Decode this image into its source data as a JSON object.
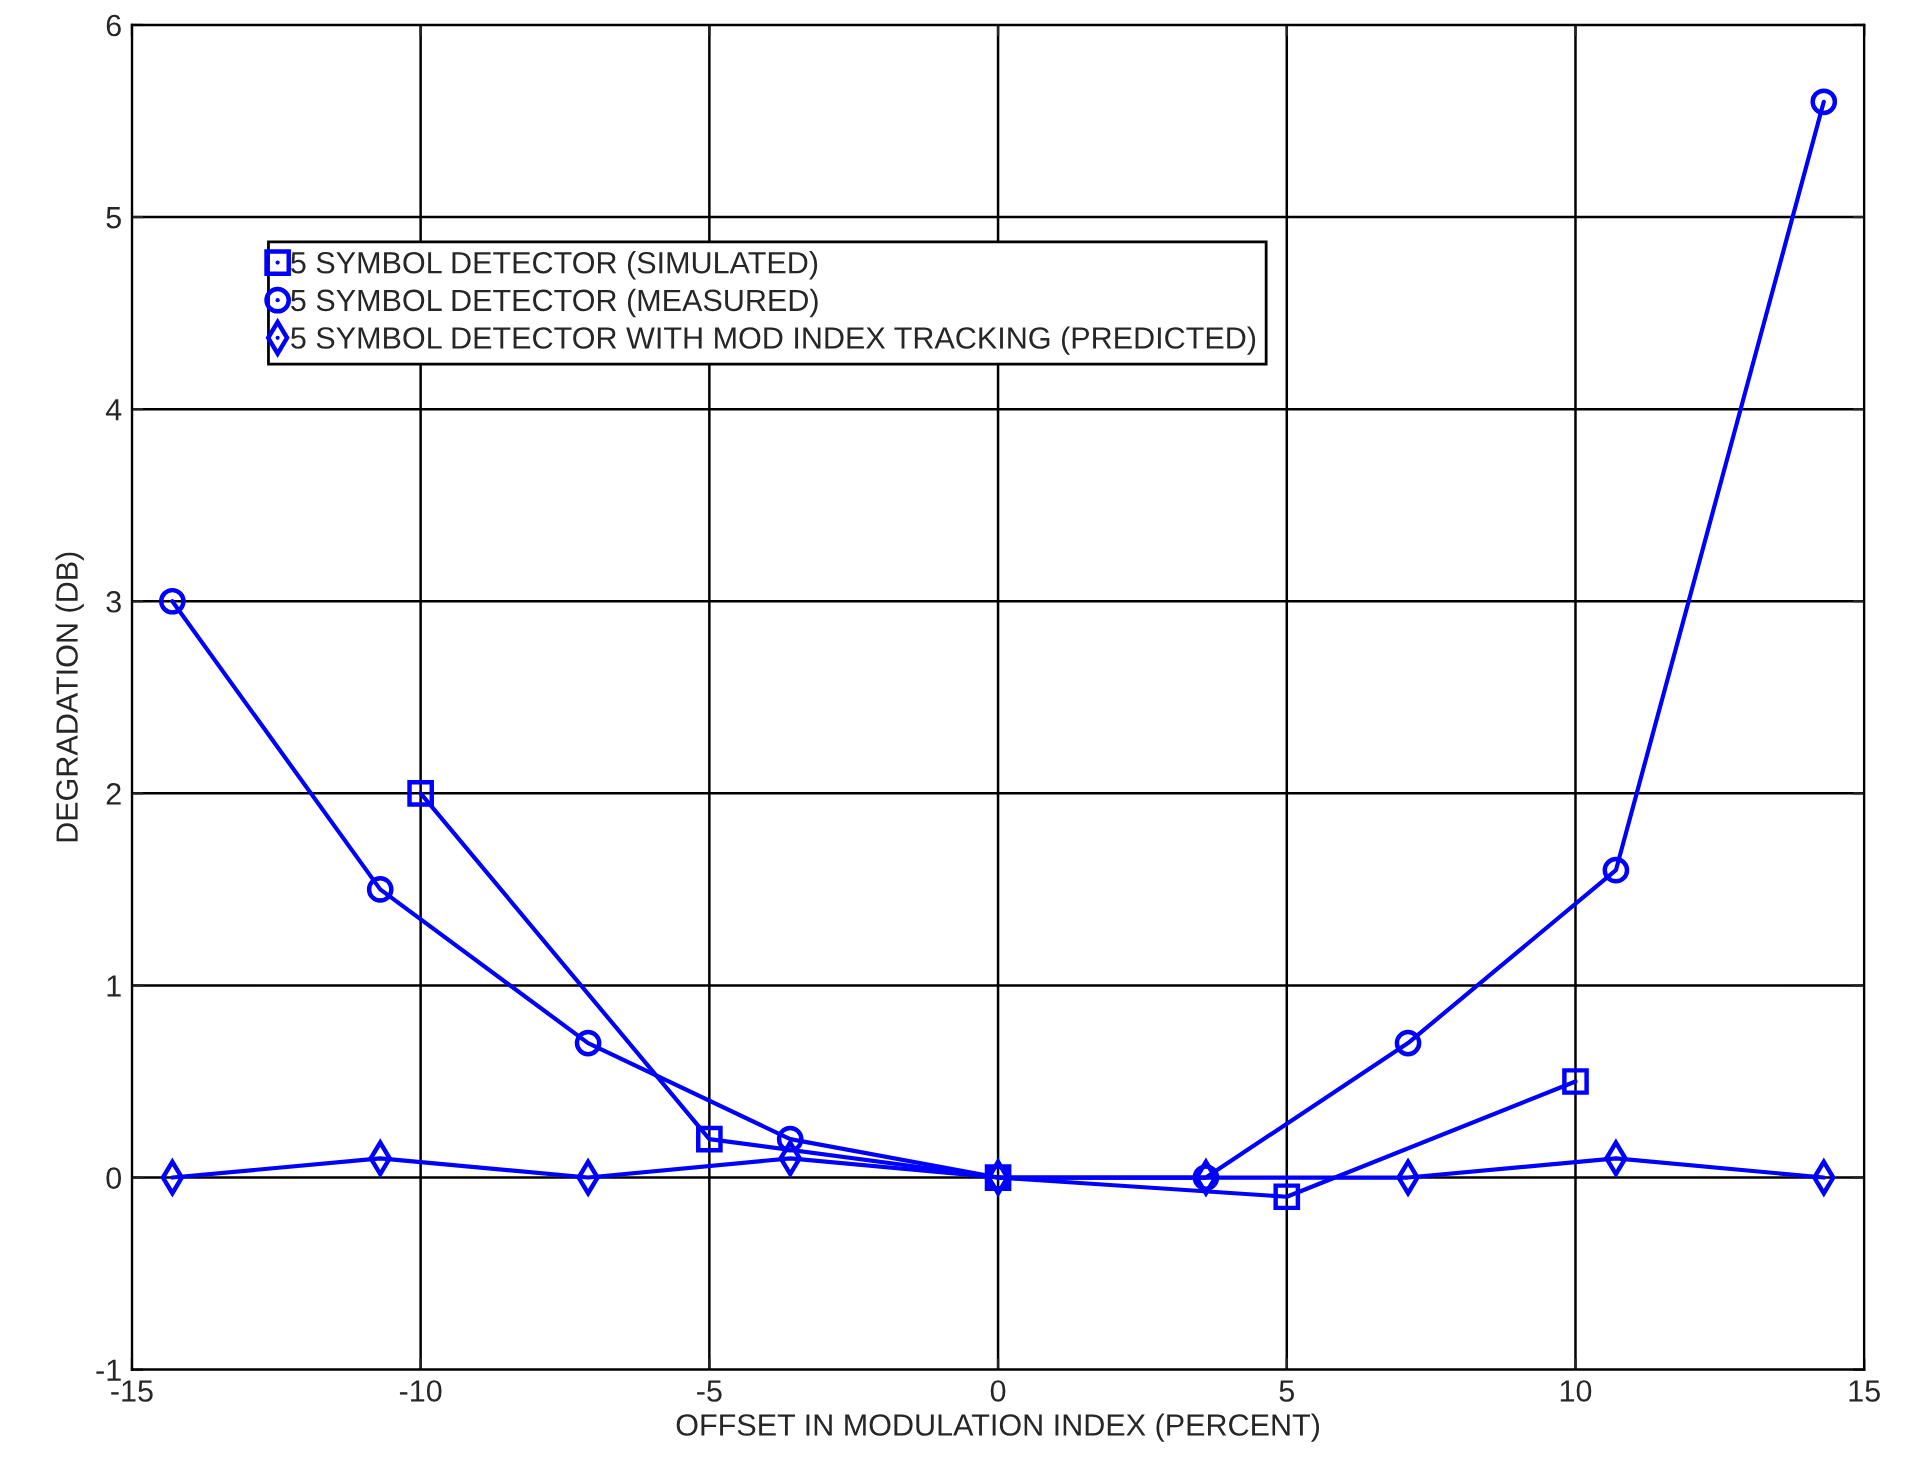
{
  "chart_data": {
    "type": "line",
    "xlabel": "OFFSET IN MODULATION INDEX (PERCENT)",
    "ylabel": "DEGRADATION (DB)",
    "xlim": [
      -15,
      15
    ],
    "xticks": [
      -15,
      -10,
      -5,
      0,
      5,
      10,
      15
    ],
    "ylim": [
      -1,
      6
    ],
    "yticks": [
      -1,
      0,
      1,
      2,
      3,
      4,
      5,
      6
    ],
    "grid": true,
    "legend": "top left",
    "series": [
      {
        "name": "5 SYMBOL DETECTOR (SIMULATED)",
        "color": "#0000ff",
        "marker": "square",
        "x": [
          -10,
          -5,
          0,
          5,
          10
        ],
        "values": [
          2.0,
          0.2,
          0,
          -0.1,
          0.5
        ]
      },
      {
        "name": "5 SYMBOL DETECTOR (MEASURED)",
        "color": "#0000ff",
        "marker": "circle",
        "x": [
          -14.3,
          -10.7,
          -7.1,
          -3.6,
          0,
          3.6,
          7.1,
          10.7,
          14.3
        ],
        "values": [
          3.0,
          1.5,
          0.7,
          0.2,
          0,
          0,
          0.7,
          1.6,
          5.6
        ]
      },
      {
        "name": "5 SYMBOL DETECTOR WITH MOD INDEX TRACKING (PREDICTED)",
        "color": "#0000ff",
        "marker": "diamond",
        "x": [
          -14.3,
          -10.7,
          -7.1,
          -3.6,
          0,
          3.6,
          7.1,
          10.7,
          14.3
        ],
        "values": [
          0,
          0.1,
          0,
          0.1,
          0,
          0,
          0,
          0.1,
          0
        ]
      }
    ]
  }
}
